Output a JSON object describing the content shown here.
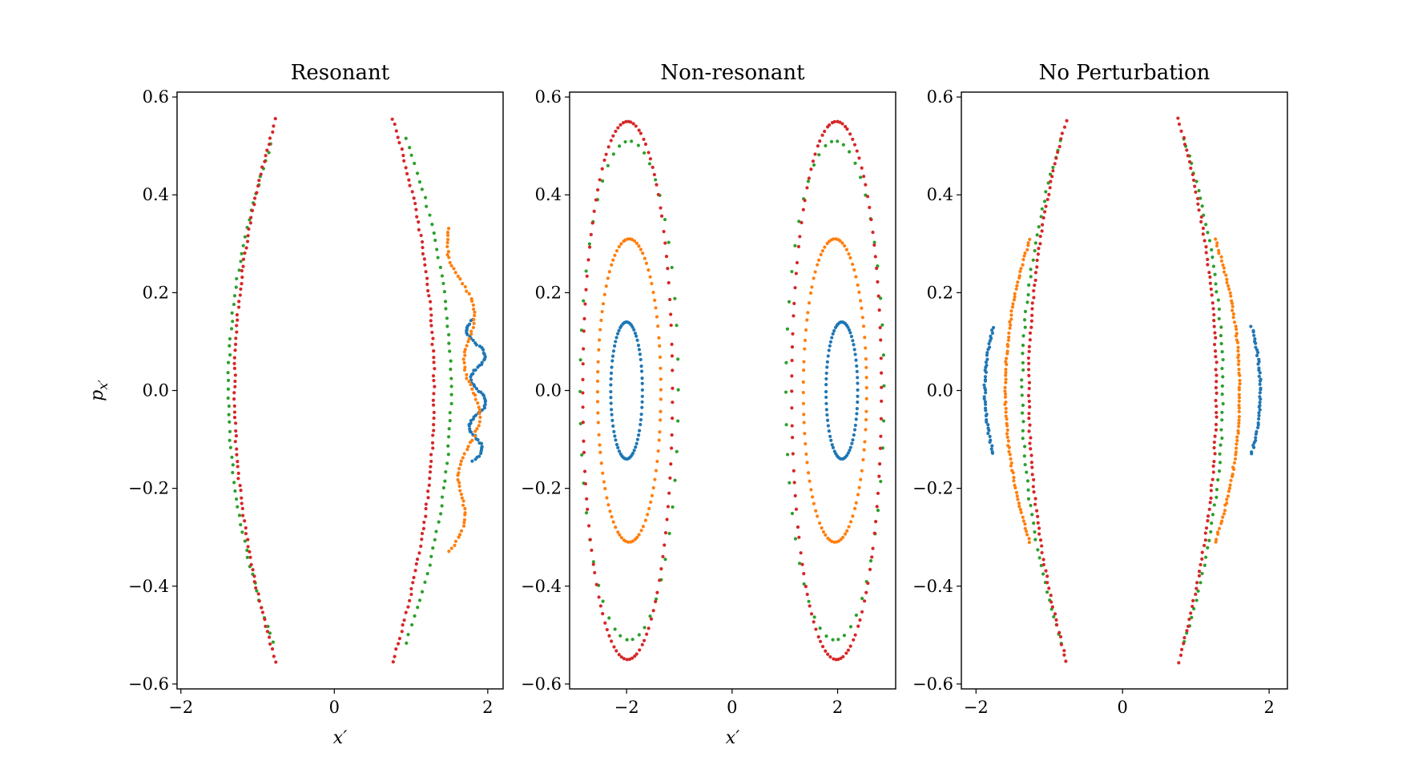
{
  "chart_data": [
    {
      "type": "scatter",
      "title": "Resonant",
      "xlabel": "x′",
      "ylabel": "p_x′",
      "xlim": [
        -2.05,
        2.2
      ],
      "ylim": [
        -0.61,
        0.61
      ],
      "xticks": [
        -2,
        0,
        2
      ],
      "xtick_labels": [
        "−2",
        "0",
        "2"
      ],
      "yticks": [
        -0.6,
        -0.4,
        -0.2,
        0.0,
        0.2,
        0.4,
        0.6
      ],
      "ytick_labels": [
        "−0.6",
        "−0.4",
        "−0.2",
        "0.0",
        "0.2",
        "0.4",
        "0.6"
      ],
      "grid": false,
      "series": [
        {
          "color": "#1f77b4",
          "curves": [
            {
              "type": "arc",
              "cx": 1.88,
              "k": -3.8,
              "dx": 0.1,
              "ymin": -0.145,
              "ymax": 0.145,
              "n": 75
            }
          ]
        },
        {
          "color": "#ff7f0e",
          "curves": [
            {
              "type": "arc",
              "cx": 1.8,
              "k": -2.8,
              "dx": 0.1,
              "ymin": -0.33,
              "ymax": 0.33,
              "n": 90
            }
          ]
        },
        {
          "color": "#2ca02c",
          "curves": [
            {
              "type": "arc",
              "cx": -1.38,
              "k": 2.2,
              "dx": 0,
              "ymin": -0.515,
              "ymax": 0.505,
              "n": 60
            },
            {
              "type": "arc",
              "cx": 1.52,
              "k": -2.2,
              "dx": 0,
              "ymin": -0.515,
              "ymax": 0.515,
              "n": 60
            }
          ]
        },
        {
          "color": "#d62728",
          "curves": [
            {
              "type": "arc",
              "cx": -1.3,
              "k": 1.75,
              "dx": 0,
              "ymin": -0.555,
              "ymax": 0.555,
              "n": 90
            },
            {
              "type": "arc",
              "cx": 1.3,
              "k": -1.75,
              "dx": 0,
              "ymin": -0.555,
              "ymax": 0.555,
              "n": 90
            }
          ]
        }
      ]
    },
    {
      "type": "scatter",
      "title": "Non-resonant",
      "xlabel": "x′",
      "ylabel": "",
      "xlim": [
        -3.08,
        3.1
      ],
      "ylim": [
        -0.61,
        0.61
      ],
      "xticks": [
        -2,
        0,
        2
      ],
      "xtick_labels": [
        "−2",
        "0",
        "2"
      ],
      "yticks": [
        -0.6,
        -0.4,
        -0.2,
        0.0,
        0.2,
        0.4,
        0.6
      ],
      "ytick_labels": [
        "−0.6",
        "−0.4",
        "−0.2",
        "0.0",
        "0.2",
        "0.4",
        "0.6"
      ],
      "grid": false,
      "series": [
        {
          "color": "#1f77b4",
          "curves": [
            {
              "type": "ellipse",
              "cx": -2.0,
              "cy": 0,
              "rx": 0.3,
              "ry": 0.14,
              "n": 70
            },
            {
              "type": "ellipse",
              "cx": 2.08,
              "cy": 0,
              "rx": 0.3,
              "ry": 0.14,
              "n": 70
            }
          ]
        },
        {
          "color": "#ff7f0e",
          "curves": [
            {
              "type": "ellipse",
              "cx": -1.95,
              "cy": 0,
              "rx": 0.6,
              "ry": 0.31,
              "n": 90
            },
            {
              "type": "ellipse",
              "cx": 1.95,
              "cy": 0,
              "rx": 0.6,
              "ry": 0.31,
              "n": 90
            }
          ]
        },
        {
          "color": "#2ca02c",
          "curves": [
            {
              "type": "ellipse",
              "cx": -1.95,
              "cy": 0,
              "rx": 0.93,
              "ry": 0.51,
              "n": 50
            },
            {
              "type": "ellipse",
              "cx": 1.95,
              "cy": 0,
              "rx": 0.93,
              "ry": 0.51,
              "n": 50
            }
          ]
        },
        {
          "color": "#d62728",
          "curves": [
            {
              "type": "ellipse",
              "cx": -1.98,
              "cy": 0,
              "rx": 0.85,
              "ry": 0.55,
              "n": 110
            },
            {
              "type": "ellipse",
              "cx": 1.98,
              "cy": 0,
              "rx": 0.85,
              "ry": 0.55,
              "n": 110
            }
          ]
        }
      ]
    },
    {
      "type": "scatter",
      "title": "No Perturbation",
      "xlabel": "",
      "ylabel": "",
      "xlim": [
        -2.2,
        2.25
      ],
      "ylim": [
        -0.61,
        0.61
      ],
      "xticks": [
        -2,
        0,
        2
      ],
      "xtick_labels": [
        "−2",
        "0",
        "2"
      ],
      "yticks": [
        -0.6,
        -0.4,
        -0.2,
        0.0,
        0.2,
        0.4,
        0.6
      ],
      "ytick_labels": [
        "−0.6",
        "−0.4",
        "−0.2",
        "0.0",
        "0.2",
        "0.4",
        "0.6"
      ],
      "grid": false,
      "series": [
        {
          "color": "#1f77b4",
          "curves": [
            {
              "type": "arc",
              "cx": -1.88,
              "k": 7.0,
              "dx": 0,
              "ymin": -0.13,
              "ymax": 0.13,
              "n": 45
            },
            {
              "type": "arc",
              "cx": 1.88,
              "k": -7.0,
              "dx": 0,
              "ymin": -0.13,
              "ymax": 0.13,
              "n": 45
            }
          ]
        },
        {
          "color": "#ff7f0e",
          "curves": [
            {
              "type": "arc",
              "cx": -1.6,
              "k": 3.5,
              "dx": 0,
              "ymin": -0.31,
              "ymax": 0.31,
              "n": 85
            },
            {
              "type": "arc",
              "cx": 1.6,
              "k": -3.5,
              "dx": 0,
              "ymin": -0.31,
              "ymax": 0.31,
              "n": 85
            }
          ]
        },
        {
          "color": "#2ca02c",
          "curves": [
            {
              "type": "arc",
              "cx": -1.37,
              "k": 2.0,
              "dx": 0,
              "ymin": -0.515,
              "ymax": 0.51,
              "n": 60
            },
            {
              "type": "arc",
              "cx": 1.37,
              "k": -2.0,
              "dx": 0,
              "ymin": -0.515,
              "ymax": 0.515,
              "n": 60
            }
          ]
        },
        {
          "color": "#d62728",
          "curves": [
            {
              "type": "arc",
              "cx": -1.28,
              "k": 1.68,
              "dx": 0,
              "ymin": -0.555,
              "ymax": 0.55,
              "n": 90
            },
            {
              "type": "arc",
              "cx": 1.28,
              "k": -1.68,
              "dx": 0,
              "ymin": -0.555,
              "ymax": 0.555,
              "n": 90
            }
          ]
        }
      ]
    }
  ]
}
